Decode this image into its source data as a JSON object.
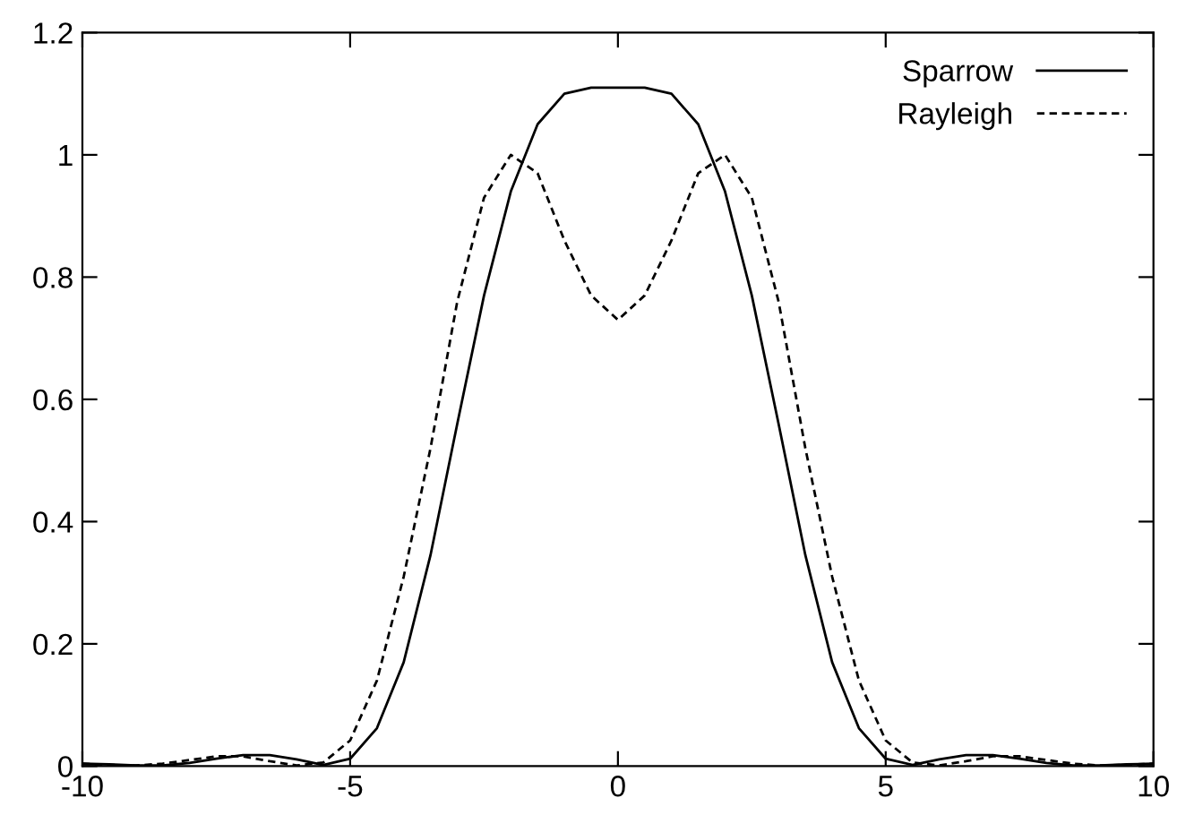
{
  "chart_data": {
    "type": "line",
    "x": [
      -10,
      -9.5,
      -9,
      -8.5,
      -8,
      -7.5,
      -7,
      -6.5,
      -6,
      -5.5,
      -5,
      -4.5,
      -4,
      -3.5,
      -3,
      -2.5,
      -2,
      -1.5,
      -1,
      -0.5,
      0,
      0.5,
      1,
      1.5,
      2,
      2.5,
      3,
      3.5,
      4,
      4.5,
      5,
      5.5,
      6,
      6.5,
      7,
      7.5,
      8,
      8.5,
      9,
      9.5,
      10
    ],
    "series": [
      {
        "name": "Sparrow",
        "color": "#000000",
        "line_style": "solid",
        "values": [
          0.004,
          0.003,
          0.001,
          0.001,
          0.005,
          0.012,
          0.018,
          0.018,
          0.011,
          0.002,
          0.012,
          0.062,
          0.17,
          0.345,
          0.56,
          0.77,
          0.94,
          1.05,
          1.1,
          1.11,
          1.11,
          1.11,
          1.1,
          1.05,
          0.94,
          0.77,
          0.56,
          0.345,
          0.17,
          0.062,
          0.012,
          0.002,
          0.011,
          0.018,
          0.018,
          0.012,
          0.005,
          0.001,
          0.001,
          0.003,
          0.004
        ]
      },
      {
        "name": "Rayleigh",
        "color": "#000000",
        "line_style": "dashed",
        "values": [
          0.004,
          0.002,
          0.001,
          0.004,
          0.01,
          0.016,
          0.016,
          0.008,
          0.001,
          0.006,
          0.042,
          0.14,
          0.31,
          0.52,
          0.76,
          0.93,
          1.0,
          0.97,
          0.86,
          0.77,
          0.73,
          0.77,
          0.86,
          0.97,
          1.0,
          0.93,
          0.76,
          0.52,
          0.31,
          0.14,
          0.042,
          0.006,
          0.001,
          0.008,
          0.016,
          0.016,
          0.01,
          0.004,
          0.001,
          0.002,
          0.004
        ]
      }
    ],
    "xlim": [
      -10,
      10
    ],
    "ylim": [
      0,
      1.2
    ],
    "xticks": [
      -10,
      -5,
      0,
      5,
      10
    ],
    "yticks": [
      0,
      0.2,
      0.4,
      0.6,
      0.8,
      1,
      1.2
    ],
    "legend": "top right",
    "grid": false,
    "marker": "none"
  }
}
